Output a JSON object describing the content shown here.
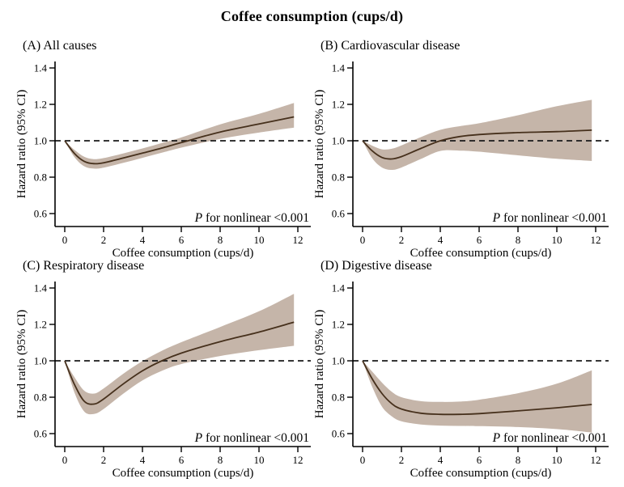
{
  "title": "Coffee consumption (cups/d)",
  "colors": {
    "band": "#c5b5a9",
    "curve": "#46301c",
    "reference_dash": "#1a1a1a",
    "axis": "#000000",
    "text": "#000000",
    "background": "#ffffff"
  },
  "chart_data": [
    {
      "type": "area",
      "panel_label": "(A) All causes",
      "xlabel": "Coffee consumption (cups/d)",
      "ylabel": "Hazard ratio (95% CI)",
      "annotation": {
        "italic": "P",
        "rest": " for nonlinear <0.001"
      },
      "xlim": [
        0,
        12
      ],
      "ylim": [
        0.6,
        1.4
      ],
      "xticks": [
        0,
        2,
        4,
        6,
        8,
        10,
        12
      ],
      "ytick_labels": [
        "0.6",
        "0.8",
        "1.0",
        "1.2",
        "1.4"
      ],
      "reference_line": 1.0,
      "legend": "none",
      "grid": "off",
      "x": [
        0,
        0.5,
        1,
        1.5,
        2,
        3,
        4,
        5,
        6,
        8,
        10,
        11.8
      ],
      "hr": [
        1.0,
        0.93,
        0.887,
        0.874,
        0.879,
        0.905,
        0.932,
        0.96,
        0.99,
        1.048,
        1.092,
        1.131
      ],
      "ci_lower": [
        1.0,
        0.91,
        0.86,
        0.847,
        0.852,
        0.878,
        0.906,
        0.934,
        0.962,
        1.01,
        1.045,
        1.072
      ],
      "ci_upper": [
        1.0,
        0.95,
        0.912,
        0.899,
        0.905,
        0.93,
        0.958,
        0.988,
        1.018,
        1.09,
        1.148,
        1.208
      ]
    },
    {
      "type": "area",
      "panel_label": "(B) Cardiovascular disease",
      "xlabel": "Coffee consumption (cups/d)",
      "ylabel": "Hazard ratio (95% CI)",
      "annotation": {
        "italic": "P",
        "rest": " for nonlinear <0.001"
      },
      "xlim": [
        0,
        12
      ],
      "ylim": [
        0.6,
        1.4
      ],
      "xticks": [
        0,
        2,
        4,
        6,
        8,
        10,
        12
      ],
      "ytick_labels": [
        "0.6",
        "0.8",
        "1.0",
        "1.2",
        "1.4"
      ],
      "reference_line": 1.0,
      "legend": "none",
      "grid": "off",
      "x": [
        0,
        0.5,
        1,
        1.5,
        2,
        3,
        4,
        5,
        6,
        8,
        10,
        11.8
      ],
      "hr": [
        1.0,
        0.944,
        0.908,
        0.9,
        0.913,
        0.958,
        1.0,
        1.023,
        1.034,
        1.045,
        1.05,
        1.058
      ],
      "ci_lower": [
        1.0,
        0.903,
        0.853,
        0.84,
        0.853,
        0.9,
        0.944,
        0.946,
        0.94,
        0.92,
        0.901,
        0.889
      ],
      "ci_upper": [
        1.0,
        0.973,
        0.953,
        0.956,
        0.974,
        1.02,
        1.06,
        1.08,
        1.096,
        1.14,
        1.19,
        1.225
      ]
    },
    {
      "type": "area",
      "panel_label": "(C) Respiratory disease",
      "xlabel": "Coffee consumption (cups/d)",
      "ylabel": "Hazard ratio (95% CI)",
      "annotation": {
        "italic": "P",
        "rest": " for nonlinear <0.001"
      },
      "xlim": [
        0,
        12
      ],
      "ylim": [
        0.6,
        1.4
      ],
      "xticks": [
        0,
        2,
        4,
        6,
        8,
        10,
        12
      ],
      "ytick_labels": [
        "0.6",
        "0.8",
        "1.0",
        "1.2",
        "1.4"
      ],
      "reference_line": 1.0,
      "legend": "none",
      "grid": "off",
      "x": [
        0,
        0.5,
        1,
        1.5,
        2,
        3,
        4,
        5,
        6,
        8,
        10,
        11.8
      ],
      "hr": [
        1.0,
        0.87,
        0.778,
        0.762,
        0.79,
        0.872,
        0.945,
        1.0,
        1.042,
        1.105,
        1.158,
        1.212
      ],
      "ci_lower": [
        1.0,
        0.826,
        0.722,
        0.708,
        0.735,
        0.818,
        0.892,
        0.945,
        0.982,
        1.026,
        1.058,
        1.082
      ],
      "ci_upper": [
        1.0,
        0.91,
        0.836,
        0.82,
        0.848,
        0.928,
        0.998,
        1.055,
        1.102,
        1.186,
        1.272,
        1.368
      ]
    },
    {
      "type": "area",
      "panel_label": "(D) Digestive disease",
      "xlabel": "Coffee consumption (cups/d)",
      "ylabel": "Hazard ratio (95% CI)",
      "annotation": {
        "italic": "P",
        "rest": " for nonlinear <0.001"
      },
      "xlim": [
        0,
        12
      ],
      "ylim": [
        0.6,
        1.4
      ],
      "xticks": [
        0,
        2,
        4,
        6,
        8,
        10,
        12
      ],
      "ytick_labels": [
        "0.6",
        "0.8",
        "1.0",
        "1.2",
        "1.4"
      ],
      "reference_line": 1.0,
      "legend": "none",
      "grid": "off",
      "x": [
        0,
        0.5,
        1,
        1.5,
        2,
        3,
        4,
        5,
        6,
        8,
        10,
        11.8
      ],
      "hr": [
        1.0,
        0.9,
        0.82,
        0.765,
        0.735,
        0.712,
        0.706,
        0.706,
        0.71,
        0.725,
        0.742,
        0.76
      ],
      "ci_lower": [
        1.0,
        0.856,
        0.748,
        0.695,
        0.668,
        0.65,
        0.644,
        0.642,
        0.641,
        0.636,
        0.625,
        0.606
      ],
      "ci_upper": [
        1.0,
        0.94,
        0.88,
        0.83,
        0.8,
        0.778,
        0.774,
        0.776,
        0.786,
        0.822,
        0.874,
        0.948
      ]
    }
  ]
}
